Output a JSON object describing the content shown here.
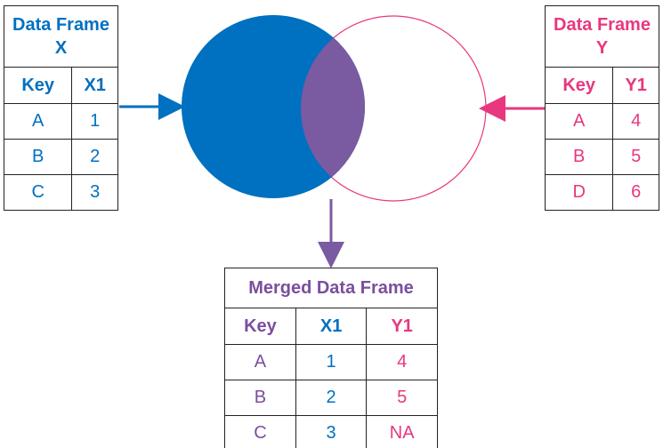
{
  "frame_x": {
    "title": "Data Frame X",
    "headers": [
      "Key",
      "X1"
    ],
    "rows": [
      [
        "A",
        "1"
      ],
      [
        "B",
        "2"
      ],
      [
        "C",
        "3"
      ]
    ]
  },
  "frame_y": {
    "title": "Data Frame Y",
    "headers": [
      "Key",
      "Y1"
    ],
    "rows": [
      [
        "A",
        "4"
      ],
      [
        "B",
        "5"
      ],
      [
        "D",
        "6"
      ]
    ]
  },
  "merged": {
    "title": "Merged Data Frame",
    "headers": [
      "Key",
      "X1",
      "Y1"
    ],
    "rows": [
      [
        "A",
        "1",
        "4"
      ],
      [
        "B",
        "2",
        "5"
      ],
      [
        "C",
        "3",
        "NA"
      ]
    ]
  },
  "colors": {
    "x_blue": "#0070c0",
    "y_pink": "#e8377f",
    "overlap_purple": "#7a5aa0",
    "merged_purple": "#7a4e9e"
  }
}
